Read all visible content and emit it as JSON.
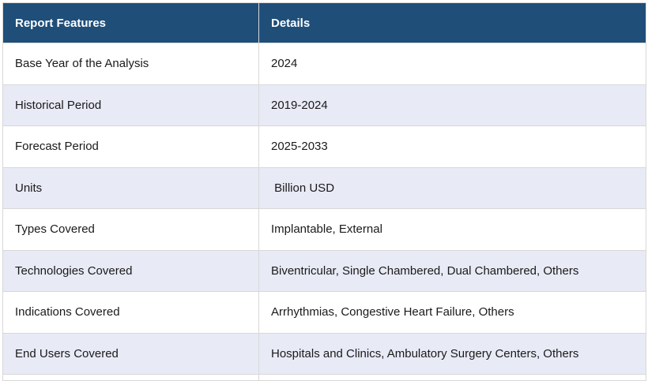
{
  "table": {
    "headers": [
      "Report Features",
      "Details"
    ],
    "rows": [
      [
        "Base Year of the Analysis",
        "2024"
      ],
      [
        "Historical Period",
        "2019-2024"
      ],
      [
        "Forecast Period",
        "2025-2033"
      ],
      [
        "Units",
        " Billion USD"
      ],
      [
        "Types Covered",
        "Implantable, External"
      ],
      [
        "Technologies Covered",
        "Biventricular, Single Chambered, Dual Chambered, Others"
      ],
      [
        "Indications Covered",
        "Arrhythmias, Congestive Heart Failure, Others"
      ],
      [
        "End Users Covered",
        "Hospitals and Clinics, Ambulatory Surgery Centers, Others"
      ]
    ]
  },
  "colors": {
    "header_bg": "#1f4e79",
    "header_text": "#ffffff",
    "row_alt_bg": "#e8eaf6",
    "row_bg": "#ffffff",
    "border": "#d8d8d8"
  }
}
